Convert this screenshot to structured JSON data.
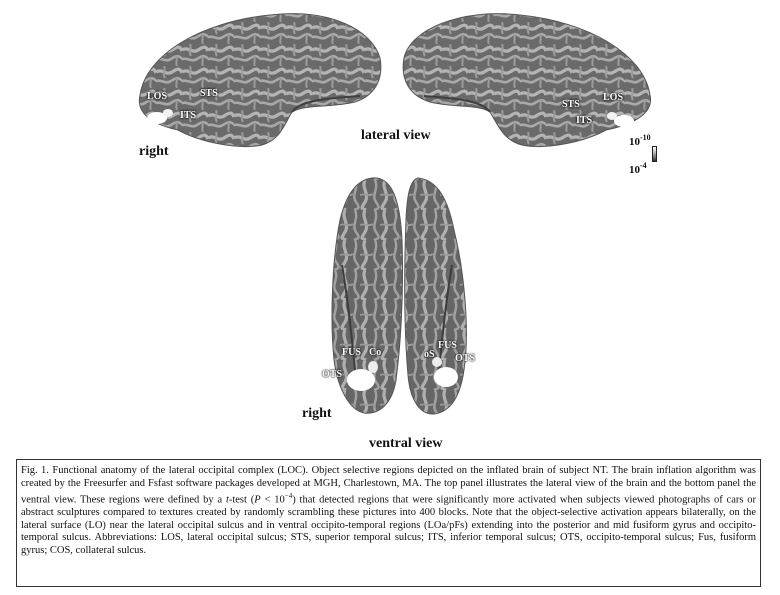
{
  "figure": {
    "lateral_left_labels": {
      "los": "LOS",
      "sts": "STS",
      "its": "ITS"
    },
    "lateral_right_labels": {
      "los": "LOS",
      "sts": "STS",
      "its": "ITS"
    },
    "right_label_top": "right",
    "lateral_view_title": "lateral view",
    "scale": {
      "high": "10",
      "high_exp": "-10",
      "low": "10",
      "low_exp": "-4"
    },
    "ventral_left_labels": {
      "fus": "FUS",
      "cos": "Co",
      "ots": "OTS"
    },
    "ventral_right_labels": {
      "fus": "FUS",
      "cos": "oS",
      "ots": "OTS"
    },
    "right_label_bottom": "right",
    "ventral_view_title": "ventral view"
  },
  "caption": {
    "part1": "Fig. 1. Functional anatomy of the lateral occipital complex (LOC). Object selective regions depicted on the inflated brain of subject NT. The brain inflation algorithm was created by the Freesurfer and Fsfast software packages developed at MGH, Charlestown, MA. The top panel illustrates the lateral view of the brain and the bottom panel the ventral view. These regions were defined by a ",
    "t": "t",
    "part2": "-test (",
    "p": "P",
    "part3": " < 10",
    "exp": "−4",
    "part4": ") that detected regions that were significantly more activated when subjects viewed photographs of cars or abstract sculptures compared to textures created by randomly scrambling these pictures into 400 blocks. Note that the object-selective activation appears bilaterally, on the lateral surface (LO) near the lateral occipital sulcus and in ventral occipito-temporal regions (LOa/pFs) extending into the posterior and mid fusiform gyrus and occipito-temporal sulcus. Abbreviations: LOS, lateral occipital sulcus; STS, superior temporal sulcus; ITS, inferior temporal sulcus; OTS, occipito-temporal sulcus; Fus, fusiform gyrus; COS, collateral sulcus."
  }
}
